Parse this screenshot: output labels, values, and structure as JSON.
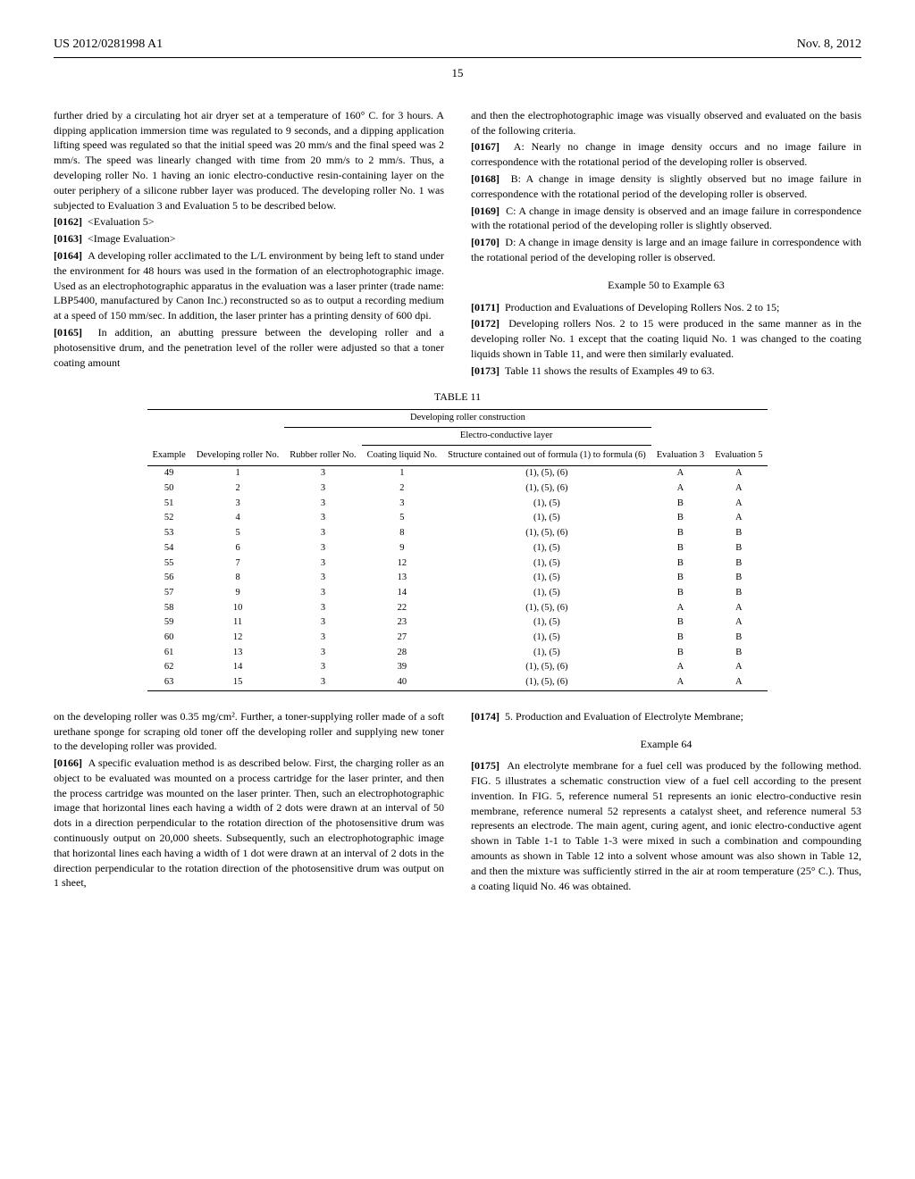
{
  "header": {
    "left": "US 2012/0281998 A1",
    "right": "Nov. 8, 2012"
  },
  "page_number": "15",
  "col1": {
    "p1": "further dried by a circulating hot air dryer set at a temperature of 160° C. for 3 hours. A dipping application immersion time was regulated to 9 seconds, and a dipping application lifting speed was regulated so that the initial speed was 20 mm/s and the final speed was 2 mm/s. The speed was linearly changed with time from 20 mm/s to 2 mm/s. Thus, a developing roller No. 1 having an ionic electro-conductive resin-containing layer on the outer periphery of a silicone rubber layer was produced. The developing roller No. 1 was subjected to Evaluation 3 and Evaluation 5 to be described below.",
    "p0162_num": "[0162]",
    "p0162": "<Evaluation 5>",
    "p0163_num": "[0163]",
    "p0163": "<Image Evaluation>",
    "p0164_num": "[0164]",
    "p0164": "A developing roller acclimated to the L/L environment by being left to stand under the environment for 48 hours was used in the formation of an electrophotographic image. Used as an electrophotographic apparatus in the evaluation was a laser printer (trade name: LBP5400, manufactured by Canon Inc.) reconstructed so as to output a recording medium at a speed of 150 mm/sec. In addition, the laser printer has a printing density of 600 dpi.",
    "p0165_num": "[0165]",
    "p0165": "In addition, an abutting pressure between the developing roller and a photosensitive drum, and the penetration level of the roller were adjusted so that a toner coating amount",
    "p_after": "on the developing roller was 0.35 mg/cm². Further, a toner-supplying roller made of a soft urethane sponge for scraping old toner off the developing roller and supplying new toner to the developing roller was provided.",
    "p0166_num": "[0166]",
    "p0166": "A specific evaluation method is as described below. First, the charging roller as an object to be evaluated was mounted on a process cartridge for the laser printer, and then the process cartridge was mounted on the laser printer. Then, such an electrophotographic image that horizontal lines each having a width of 2 dots were drawn at an interval of 50 dots in a direction perpendicular to the rotation direction of the photosensitive drum was continuously output on 20,000 sheets. Subsequently, such an electrophotographic image that horizontal lines each having a width of 1 dot were drawn at an interval of 2 dots in the direction perpendicular to the rotation direction of the photosensitive drum was output on 1 sheet,"
  },
  "col2": {
    "p_top": "and then the electrophotographic image was visually observed and evaluated on the basis of the following criteria.",
    "p0167_num": "[0167]",
    "p0167": "A: Nearly no change in image density occurs and no image failure in correspondence with the rotational period of the developing roller is observed.",
    "p0168_num": "[0168]",
    "p0168": "B: A change in image density is slightly observed but no image failure in correspondence with the rotational period of the developing roller is observed.",
    "p0169_num": "[0169]",
    "p0169": "C: A change in image density is observed and an image failure in correspondence with the rotational period of the developing roller is slightly observed.",
    "p0170_num": "[0170]",
    "p0170": "D: A change in image density is large and an image failure in correspondence with the rotational period of the developing roller is observed.",
    "ex_title": "Example 50 to Example 63",
    "p0171_num": "[0171]",
    "p0171": "Production and Evaluations of Developing Rollers Nos. 2 to 15;",
    "p0172_num": "[0172]",
    "p0172": "Developing rollers Nos. 2 to 15 were produced in the same manner as in the developing roller No. 1 except that the coating liquid No. 1 was changed to the coating liquids shown in Table 11, and were then similarly evaluated.",
    "p0173_num": "[0173]",
    "p0173": "Table 11 shows the results of Examples 49 to 63.",
    "p0174_num": "[0174]",
    "p0174": "5. Production and Evaluation of Electrolyte Membrane;",
    "ex64_title": "Example 64",
    "p0175_num": "[0175]",
    "p0175": "An electrolyte membrane for a fuel cell was produced by the following method. FIG. 5 illustrates a schematic construction view of a fuel cell according to the present invention. In FIG. 5, reference numeral 51 represents an ionic electro-conductive resin membrane, reference numeral 52 represents a catalyst sheet, and reference numeral 53 represents an electrode. The main agent, curing agent, and ionic electro-conductive agent shown in Table 1-1 to Table 1-3 were mixed in such a combination and compounding amounts as shown in Table 12 into a solvent whose amount was also shown in Table 12, and then the mixture was sufficiently stirred in the air at room temperature (25° C.). Thus, a coating liquid No. 46 was obtained."
  },
  "table": {
    "title": "TABLE 11",
    "super_header1": "Developing roller construction",
    "super_header2": "Electro-conductive layer",
    "columns": {
      "c1": "Example",
      "c2": "Developing roller No.",
      "c3": "Rubber roller No.",
      "c4": "Coating liquid No.",
      "c5": "Structure contained out of formula (1) to formula (6)",
      "c6": "Evaluation 3",
      "c7": "Evaluation 5"
    },
    "rows": [
      [
        "49",
        "1",
        "3",
        "1",
        "(1), (5), (6)",
        "A",
        "A"
      ],
      [
        "50",
        "2",
        "3",
        "2",
        "(1), (5), (6)",
        "A",
        "A"
      ],
      [
        "51",
        "3",
        "3",
        "3",
        "(1), (5)",
        "B",
        "A"
      ],
      [
        "52",
        "4",
        "3",
        "5",
        "(1), (5)",
        "B",
        "A"
      ],
      [
        "53",
        "5",
        "3",
        "8",
        "(1), (5), (6)",
        "B",
        "B"
      ],
      [
        "54",
        "6",
        "3",
        "9",
        "(1), (5)",
        "B",
        "B"
      ],
      [
        "55",
        "7",
        "3",
        "12",
        "(1), (5)",
        "B",
        "B"
      ],
      [
        "56",
        "8",
        "3",
        "13",
        "(1), (5)",
        "B",
        "B"
      ],
      [
        "57",
        "9",
        "3",
        "14",
        "(1), (5)",
        "B",
        "B"
      ],
      [
        "58",
        "10",
        "3",
        "22",
        "(1), (5), (6)",
        "A",
        "A"
      ],
      [
        "59",
        "11",
        "3",
        "23",
        "(1), (5)",
        "B",
        "A"
      ],
      [
        "60",
        "12",
        "3",
        "27",
        "(1), (5)",
        "B",
        "B"
      ],
      [
        "61",
        "13",
        "3",
        "28",
        "(1), (5)",
        "B",
        "B"
      ],
      [
        "62",
        "14",
        "3",
        "39",
        "(1), (5), (6)",
        "A",
        "A"
      ],
      [
        "63",
        "15",
        "3",
        "40",
        "(1), (5), (6)",
        "A",
        "A"
      ]
    ]
  }
}
